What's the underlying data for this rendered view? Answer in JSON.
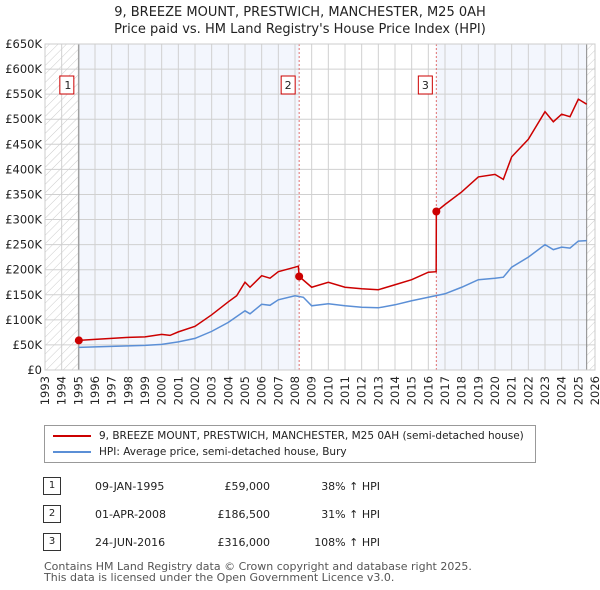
{
  "chart_data": {
    "type": "line",
    "title": "9, BREEZE MOUNT, PRESTWICH, MANCHESTER, M25 0AH",
    "subtitle": "Price paid vs. HM Land Registry's House Price Index (HPI)",
    "ylim": [
      0,
      650000
    ],
    "xlim": [
      1993,
      2026
    ],
    "yticks": [
      {
        "v": 0,
        "l": "£0"
      },
      {
        "v": 50000,
        "l": "£50K"
      },
      {
        "v": 100000,
        "l": "£100K"
      },
      {
        "v": 150000,
        "l": "£150K"
      },
      {
        "v": 200000,
        "l": "£200K"
      },
      {
        "v": 250000,
        "l": "£250K"
      },
      {
        "v": 300000,
        "l": "£300K"
      },
      {
        "v": 350000,
        "l": "£350K"
      },
      {
        "v": 400000,
        "l": "£400K"
      },
      {
        "v": 450000,
        "l": "£450K"
      },
      {
        "v": 500000,
        "l": "£500K"
      },
      {
        "v": 550000,
        "l": "£550K"
      },
      {
        "v": 600000,
        "l": "£600K"
      },
      {
        "v": 650000,
        "l": "£650K"
      }
    ],
    "xticks": [
      1993,
      1994,
      1995,
      1996,
      1997,
      1998,
      1999,
      2000,
      2001,
      2002,
      2003,
      2004,
      2005,
      2006,
      2007,
      2008,
      2009,
      2010,
      2011,
      2012,
      2013,
      2014,
      2015,
      2016,
      2017,
      2018,
      2019,
      2020,
      2021,
      2022,
      2023,
      2024,
      2025,
      2026
    ],
    "grid": true,
    "series": [
      {
        "name": "9, BREEZE MOUNT, PRESTWICH, MANCHESTER, M25 0AH (semi-detached house)",
        "color": "#cc0000",
        "x": [
          1995.03,
          1996,
          1997,
          1998,
          1999,
          2000,
          2000.5,
          2001,
          2002,
          2003,
          2004,
          2004.5,
          2005,
          2005.3,
          2006,
          2006.5,
          2007,
          2008,
          2008.2,
          2008.25,
          2009,
          2010,
          2011,
          2012,
          2013,
          2014,
          2015,
          2016,
          2016.47,
          2016.48,
          2017,
          2018,
          2019,
          2020,
          2020.5,
          2021,
          2022,
          2023,
          2023.5,
          2024,
          2024.5,
          2025,
          2025.5
        ],
        "y": [
          59000,
          61000,
          63000,
          65000,
          66000,
          71000,
          69000,
          76000,
          87000,
          110000,
          136000,
          148000,
          175000,
          165000,
          188000,
          183000,
          196000,
          205000,
          207000,
          186500,
          165000,
          175000,
          165000,
          162000,
          160000,
          170000,
          180000,
          195000,
          196000,
          316000,
          330000,
          355000,
          385000,
          390000,
          380000,
          425000,
          460000,
          515000,
          495000,
          510000,
          505000,
          540000,
          530000
        ]
      },
      {
        "name": "HPI: Average price, semi-detached house, Bury",
        "color": "#5b8fd6",
        "x": [
          1995.03,
          1996,
          1997,
          1998,
          1999,
          2000,
          2001,
          2002,
          2003,
          2004,
          2005,
          2005.3,
          2006,
          2006.5,
          2007,
          2008,
          2008.5,
          2009,
          2010,
          2011,
          2012,
          2013,
          2014,
          2015,
          2016,
          2017,
          2018,
          2019,
          2020,
          2020.5,
          2021,
          2022,
          2023,
          2023.5,
          2024,
          2024.5,
          2025,
          2025.5
        ],
        "y": [
          45000,
          46000,
          47000,
          48000,
          49000,
          51000,
          56000,
          63000,
          77000,
          95000,
          118000,
          112000,
          131000,
          129000,
          140000,
          148000,
          145000,
          128000,
          132000,
          128000,
          125000,
          124000,
          130000,
          138000,
          145000,
          152000,
          165000,
          180000,
          183000,
          185000,
          205000,
          225000,
          250000,
          240000,
          245000,
          243000,
          257000,
          258000
        ]
      }
    ],
    "sales": [
      {
        "label": "1",
        "x": 1995.03,
        "y": 59000
      },
      {
        "label": "2",
        "x": 2008.25,
        "y": 186500
      },
      {
        "label": "3",
        "x": 2016.48,
        "y": 316000
      }
    ],
    "periods": {
      "hatch_before": 1995.03,
      "hatch_after": 2025.5
    }
  },
  "legend": [
    "9, BREEZE MOUNT, PRESTWICH, MANCHESTER, M25 0AH (semi-detached house)",
    "HPI: Average price, semi-detached house, Bury"
  ],
  "transactions": [
    {
      "n": "1",
      "date": "09-JAN-1995",
      "price": "£59,000",
      "hpi": "38% ↑ HPI"
    },
    {
      "n": "2",
      "date": "01-APR-2008",
      "price": "£186,500",
      "hpi": "31% ↑ HPI"
    },
    {
      "n": "3",
      "date": "24-JUN-2016",
      "price": "£316,000",
      "hpi": "108% ↑ HPI"
    }
  ],
  "footer": [
    "Contains HM Land Registry data © Crown copyright and database right 2025.",
    "This data is licensed under the Open Government Licence v3.0."
  ]
}
